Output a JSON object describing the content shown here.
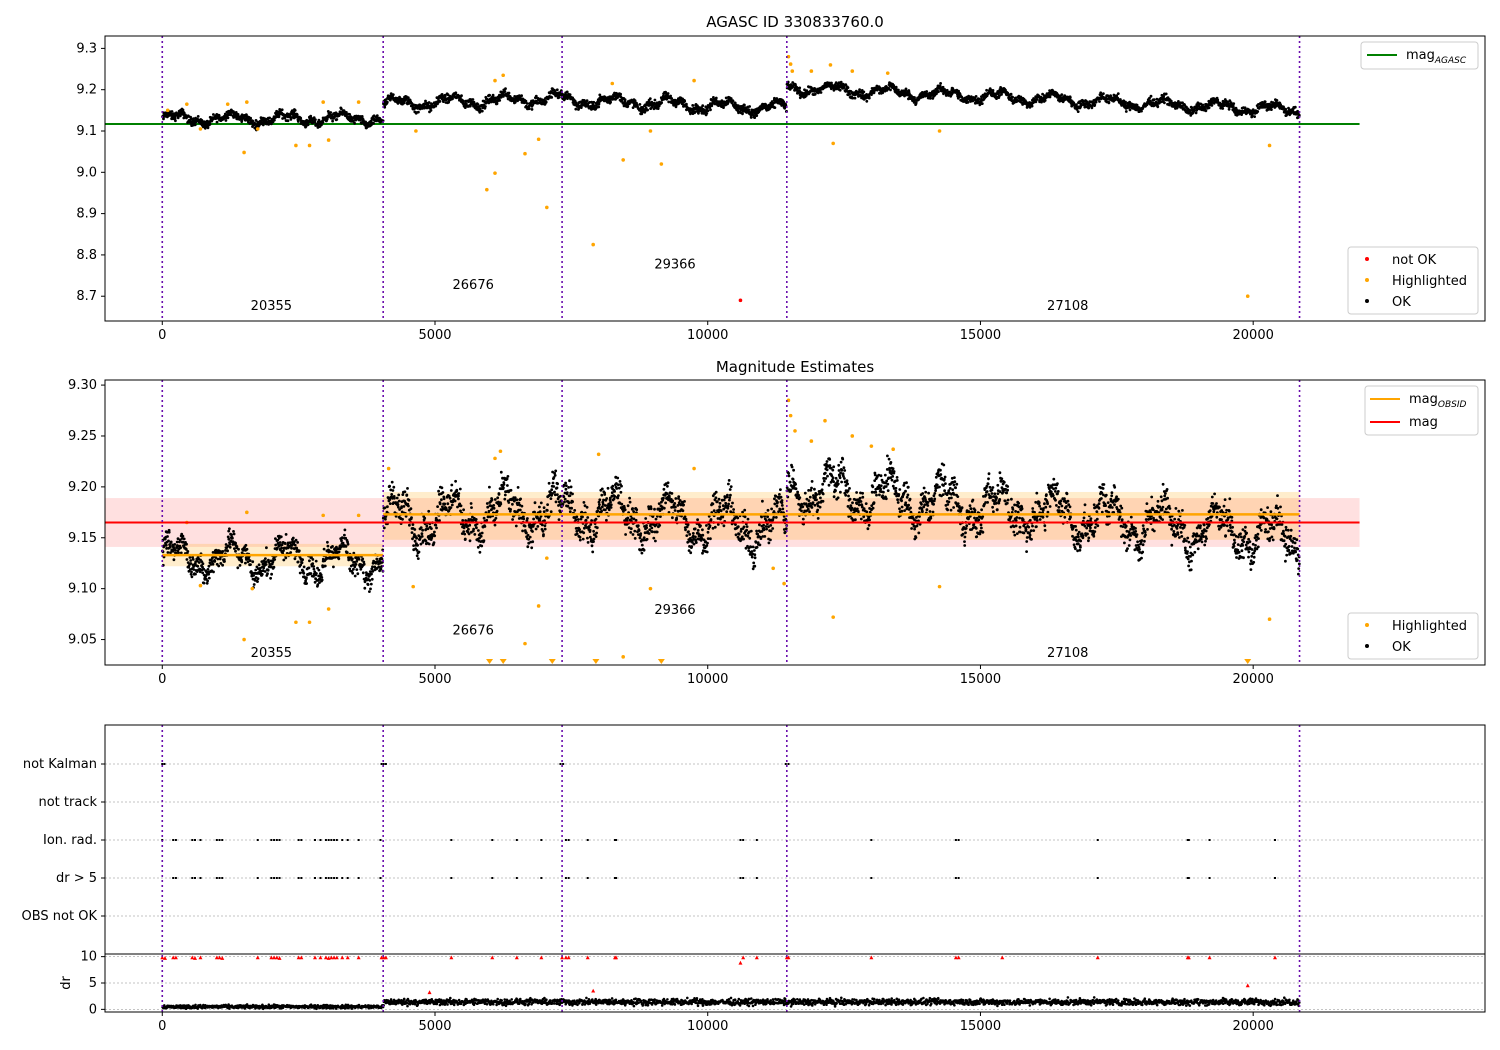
{
  "figure": {
    "title": "AGASC ID 330833760.0",
    "xticks": [
      0,
      5000,
      10000,
      15000,
      20000
    ],
    "xlim": [
      -1050,
      24250
    ],
    "obsid_boundaries": [
      0,
      4050,
      7330,
      11450,
      20850
    ],
    "colors": {
      "ok": "#000000",
      "highlighted": "#ffa500",
      "not_ok": "#ff0000",
      "mag_agasc": "#008000",
      "mag_obsid": "#ffa500",
      "mag": "#ff0000",
      "obsid_boundary": "#6a0dad"
    }
  },
  "chart_data": [
    {
      "type": "scatter",
      "title": "AGASC ID 330833760.0",
      "xlabel": "",
      "ylabel": "",
      "ylim": [
        8.64,
        9.33
      ],
      "yticks": [
        "8.7",
        "8.8",
        "8.9",
        "9.0",
        "9.1",
        "9.2",
        "9.3"
      ],
      "xticks": [
        "0",
        "5000",
        "10000",
        "15000",
        "20000"
      ],
      "grid": false,
      "legend_upper": {
        "placement": "top-right",
        "entries": [
          "mag"
        ]
      },
      "legend_upper_subscript": "AGASC",
      "legend_lower": {
        "placement": "bottom-right",
        "entries": [
          "not OK",
          "Highlighted",
          "OK"
        ]
      },
      "reference_lines": [
        {
          "name": "mag_AGASC",
          "y": 9.117,
          "x_range": [
            -1050,
            21950
          ]
        }
      ],
      "obsid_labels": [
        {
          "text": "20355",
          "x": 2000,
          "y": 8.667
        },
        {
          "text": "26676",
          "x": 5700,
          "y": 8.717
        },
        {
          "text": "29366",
          "x": 9400,
          "y": 8.767
        },
        {
          "text": "27108",
          "x": 16600,
          "y": 8.667
        }
      ],
      "series": [
        {
          "name": "OK",
          "segments": [
            {
              "x_range": [
                0,
                4050
              ],
              "y_start": 9.13,
              "y_end": 9.13,
              "spread": 0.018
            },
            {
              "x_range": [
                4050,
                7330
              ],
              "y_start": 9.165,
              "y_end": 9.18,
              "spread": 0.02
            },
            {
              "x_range": [
                7330,
                11450
              ],
              "y_start": 9.175,
              "y_end": 9.155,
              "spread": 0.02
            },
            {
              "x_range": [
                11450,
                20850
              ],
              "y_start": 9.205,
              "y_end": 9.15,
              "spread": 0.018
            }
          ]
        },
        {
          "name": "Highlighted",
          "points": [
            [
              100,
              9.15
            ],
            [
              450,
              9.165
            ],
            [
              700,
              9.105
            ],
            [
              1200,
              9.165
            ],
            [
              1500,
              9.048
            ],
            [
              1550,
              9.17
            ],
            [
              1750,
              9.105
            ],
            [
              2450,
              9.065
            ],
            [
              2700,
              9.065
            ],
            [
              2950,
              9.17
            ],
            [
              3050,
              9.078
            ],
            [
              3600,
              9.17
            ],
            [
              4650,
              9.1
            ],
            [
              5950,
              8.958
            ],
            [
              6100,
              8.998
            ],
            [
              6100,
              9.222
            ],
            [
              6250,
              9.235
            ],
            [
              6650,
              9.045
            ],
            [
              6900,
              9.08
            ],
            [
              7050,
              8.915
            ],
            [
              7900,
              8.825
            ],
            [
              8250,
              9.215
            ],
            [
              8450,
              9.03
            ],
            [
              8950,
              9.1
            ],
            [
              9150,
              9.02
            ],
            [
              9750,
              9.222
            ],
            [
              11480,
              9.28
            ],
            [
              11520,
              9.262
            ],
            [
              11550,
              9.245
            ],
            [
              11900,
              9.245
            ],
            [
              12250,
              9.26
            ],
            [
              12300,
              9.07
            ],
            [
              12650,
              9.245
            ],
            [
              13300,
              9.24
            ],
            [
              14250,
              9.1
            ],
            [
              19900,
              8.7
            ],
            [
              20300,
              9.065
            ]
          ]
        },
        {
          "name": "not OK",
          "points": [
            [
              10600,
              8.69
            ]
          ]
        }
      ]
    },
    {
      "type": "scatter",
      "title": "Magnitude Estimates",
      "xlabel": "",
      "ylabel": "",
      "ylim": [
        9.025,
        9.305
      ],
      "yticks": [
        "9.05",
        "9.10",
        "9.15",
        "9.20",
        "9.25",
        "9.30"
      ],
      "xticks": [
        "0",
        "5000",
        "10000",
        "15000",
        "20000"
      ],
      "grid": false,
      "legend_upper": {
        "placement": "top-right",
        "entries": [
          "mag",
          "mag"
        ]
      },
      "legend_upper_subscript": "OBSID",
      "legend_lower": {
        "placement": "bottom-right",
        "entries": [
          "Highlighted",
          "OK"
        ]
      },
      "mag_band": {
        "y": 9.165,
        "low": 9.141,
        "high": 9.189,
        "x_range": [
          -1050,
          21950
        ]
      },
      "obsid_mags": [
        {
          "x_range": [
            0,
            4050
          ],
          "y": 9.133,
          "low": 9.122,
          "high": 9.144
        },
        {
          "x_range": [
            4050,
            11450
          ],
          "y": 9.173,
          "low": 9.148,
          "high": 9.195
        },
        {
          "x_range": [
            11450,
            20850
          ],
          "y": 9.173,
          "low": 9.148,
          "high": 9.195
        }
      ],
      "obsid_labels": [
        {
          "text": "20355",
          "x": 2000,
          "y": 9.033
        },
        {
          "text": "26676",
          "x": 5700,
          "y": 9.055
        },
        {
          "text": "29366",
          "x": 9400,
          "y": 9.075
        },
        {
          "text": "27108",
          "x": 16600,
          "y": 9.033
        }
      ],
      "series": [
        {
          "name": "OK",
          "segments": [
            {
              "x_range": [
                0,
                4050
              ],
              "y_start": 9.131,
              "y_end": 9.128,
              "spread": 0.022
            },
            {
              "x_range": [
                4050,
                7330
              ],
              "y_start": 9.168,
              "y_end": 9.178,
              "spread": 0.03
            },
            {
              "x_range": [
                7330,
                11450
              ],
              "y_start": 9.178,
              "y_end": 9.16,
              "spread": 0.03
            },
            {
              "x_range": [
                11450,
                20850
              ],
              "y_start": 9.2,
              "y_end": 9.15,
              "spread": 0.03
            }
          ]
        },
        {
          "name": "Highlighted",
          "points": [
            [
              450,
              9.165
            ],
            [
              700,
              9.103
            ],
            [
              1500,
              9.05
            ],
            [
              1550,
              9.175
            ],
            [
              1650,
              9.1
            ],
            [
              2450,
              9.067
            ],
            [
              2700,
              9.067
            ],
            [
              2950,
              9.172
            ],
            [
              3050,
              9.08
            ],
            [
              3600,
              9.172
            ],
            [
              4150,
              9.218
            ],
            [
              4600,
              9.102
            ],
            [
              6100,
              9.228
            ],
            [
              6200,
              9.235
            ],
            [
              6650,
              9.046
            ],
            [
              6900,
              9.083
            ],
            [
              7050,
              9.13
            ],
            [
              8000,
              9.232
            ],
            [
              8450,
              9.033
            ],
            [
              8950,
              9.1
            ],
            [
              9750,
              9.218
            ],
            [
              11200,
              9.12
            ],
            [
              11400,
              9.105
            ],
            [
              11480,
              9.285
            ],
            [
              11520,
              9.27
            ],
            [
              11600,
              9.255
            ],
            [
              11900,
              9.245
            ],
            [
              12150,
              9.265
            ],
            [
              12300,
              9.072
            ],
            [
              12650,
              9.25
            ],
            [
              13000,
              9.24
            ],
            [
              13400,
              9.237
            ],
            [
              14250,
              9.102
            ],
            [
              20300,
              9.07
            ]
          ]
        },
        {
          "name": "Highlighted (clipped)",
          "points": [
            [
              6000,
              9.025
            ],
            [
              6250,
              9.025
            ],
            [
              7150,
              9.025
            ],
            [
              7950,
              9.025
            ],
            [
              9150,
              9.025
            ],
            [
              19900,
              9.025
            ]
          ]
        }
      ]
    },
    {
      "type": "scatter",
      "title": "",
      "xlabel": "",
      "ylabel": "dr",
      "flag_rows": [
        "not Kalman",
        "not track",
        "Ion. rad.",
        "dr > 5",
        "OBS not OK"
      ],
      "dr_yticks": [
        "0",
        "5",
        "10"
      ],
      "dr_ylim": [
        -0.5,
        10.5
      ],
      "xticks": [
        "0",
        "5000",
        "10000",
        "15000",
        "20000"
      ],
      "grid": true,
      "flag_points": {
        "not Kalman": [
          0,
          40,
          4020,
          4060,
          4100,
          7300,
          7350,
          11430,
          11480
        ],
        "not track": [],
        "Ion. rad.": [
          0,
          200,
          250,
          550,
          600,
          700,
          1000,
          1050,
          1100,
          1750,
          2000,
          2050,
          2100,
          2150,
          2500,
          2550,
          2800,
          2900,
          3000,
          3050,
          3100,
          3150,
          3200,
          3300,
          3400,
          3600,
          4000,
          5300,
          6050,
          6500,
          6950,
          7400,
          7450,
          7800,
          8300,
          8320,
          10600,
          10650,
          10900,
          13000,
          14550,
          14600,
          17150,
          18800,
          18820,
          19200,
          20400
        ],
        "dr > 5": [
          200,
          250,
          550,
          600,
          700,
          1000,
          1050,
          1100,
          1750,
          2000,
          2050,
          2100,
          2150,
          2500,
          2550,
          2800,
          2900,
          3000,
          3050,
          3100,
          3150,
          3200,
          3300,
          3400,
          3600,
          4000,
          5300,
          6050,
          6500,
          6950,
          7400,
          7450,
          7800,
          8300,
          8320,
          10600,
          10650,
          10900,
          13000,
          14550,
          14600,
          17150,
          18800,
          18820,
          19200,
          20400
        ],
        "OBS not OK": []
      },
      "dr_red_points": [
        [
          0,
          9.8
        ],
        [
          50,
          9.7
        ],
        [
          200,
          9.8
        ],
        [
          250,
          9.8
        ],
        [
          550,
          9.8
        ],
        [
          600,
          9.7
        ],
        [
          700,
          9.8
        ],
        [
          1000,
          9.8
        ],
        [
          1050,
          9.8
        ],
        [
          1100,
          9.7
        ],
        [
          1750,
          9.8
        ],
        [
          2000,
          9.8
        ],
        [
          2050,
          9.8
        ],
        [
          2100,
          9.8
        ],
        [
          2150,
          9.7
        ],
        [
          2500,
          9.8
        ],
        [
          2550,
          9.8
        ],
        [
          2800,
          9.8
        ],
        [
          2900,
          9.8
        ],
        [
          3000,
          9.8
        ],
        [
          3050,
          9.7
        ],
        [
          3100,
          9.8
        ],
        [
          3150,
          9.8
        ],
        [
          3200,
          9.8
        ],
        [
          3300,
          9.8
        ],
        [
          3400,
          9.8
        ],
        [
          3600,
          9.8
        ],
        [
          4020,
          9.8
        ],
        [
          4060,
          9.8
        ],
        [
          4100,
          9.8
        ],
        [
          4900,
          3.2
        ],
        [
          5300,
          9.8
        ],
        [
          6050,
          9.8
        ],
        [
          6500,
          9.8
        ],
        [
          6950,
          9.8
        ],
        [
          7330,
          9.8
        ],
        [
          7400,
          9.8
        ],
        [
          7450,
          9.8
        ],
        [
          7800,
          9.8
        ],
        [
          7900,
          3.5
        ],
        [
          8300,
          9.8
        ],
        [
          8320,
          9.8
        ],
        [
          10600,
          8.8
        ],
        [
          10650,
          9.8
        ],
        [
          10900,
          9.8
        ],
        [
          11450,
          9.8
        ],
        [
          11480,
          9.8
        ],
        [
          13000,
          9.8
        ],
        [
          14550,
          9.8
        ],
        [
          14600,
          9.8
        ],
        [
          15400,
          9.8
        ],
        [
          17150,
          9.8
        ],
        [
          18800,
          9.8
        ],
        [
          18820,
          9.8
        ],
        [
          19200,
          9.8
        ],
        [
          19900,
          4.5
        ],
        [
          20400,
          9.8
        ]
      ],
      "dr_black_segments": [
        {
          "x_range": [
            0,
            4050
          ],
          "mean": 0.5,
          "spread": 0.5
        },
        {
          "x_range": [
            4050,
            20850
          ],
          "mean": 1.4,
          "spread": 0.9
        }
      ]
    }
  ]
}
